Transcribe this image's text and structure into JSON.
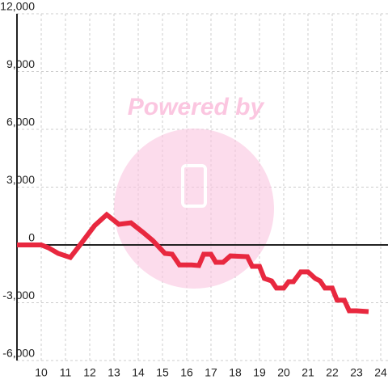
{
  "chart_data": {
    "type": "line",
    "watermark": "Powered by",
    "x": [
      9,
      10,
      10.3,
      10.7,
      11.2,
      11.6,
      12.2,
      12.7,
      13.2,
      13.7,
      14.2,
      14.6,
      15.1,
      15.4,
      15.7,
      16.2,
      16.5,
      16.7,
      17.0,
      17.2,
      17.5,
      17.8,
      18.5,
      18.7,
      19.0,
      19.2,
      19.5,
      19.7,
      20.0,
      20.2,
      20.4,
      20.7,
      21.0,
      21.3,
      21.5,
      21.7,
      22.0,
      22.2,
      22.5,
      22.7,
      23.0,
      23.5
    ],
    "series": [
      {
        "color": "#e8283f",
        "values": [
          0,
          0,
          -150,
          -440,
          -650,
          0,
          1000,
          1570,
          1070,
          1150,
          650,
          230,
          -440,
          -480,
          -1040,
          -1040,
          -1070,
          -480,
          -480,
          -900,
          -900,
          -570,
          -610,
          -1110,
          -1110,
          -1740,
          -1870,
          -2240,
          -2240,
          -1910,
          -1910,
          -1400,
          -1400,
          -1740,
          -1870,
          -2240,
          -2240,
          -2870,
          -2870,
          -3420,
          -3420,
          -3460
        ]
      }
    ],
    "xlim": [
      9,
      24.3
    ],
    "xticks": [
      10,
      11,
      12,
      13,
      14,
      15,
      16,
      17,
      18,
      19,
      20,
      21,
      22,
      23,
      24
    ],
    "ylim": [
      -6000,
      12000
    ],
    "yticks": [
      {
        "value": -6000,
        "label": "-6,000"
      },
      {
        "value": -3000,
        "label": "-3,000"
      },
      0,
      {
        "value": 3000,
        "label": "3,000"
      },
      {
        "value": 6000,
        "label": "6,000"
      },
      {
        "value": 9000,
        "label": "9,000"
      },
      {
        "value": 12000,
        "label": "12,000"
      }
    ],
    "grid": true
  }
}
